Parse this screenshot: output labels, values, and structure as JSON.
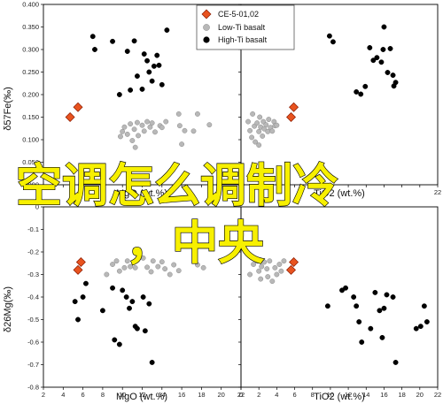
{
  "legend": {
    "items": [
      {
        "label": "CE-5-01,02",
        "marker": "diamond",
        "fill": "#e8531f"
      },
      {
        "label": "Low-Ti basalt",
        "marker": "circle",
        "fill": "#b8b8b8"
      },
      {
        "label": "High-Ti basalt",
        "marker": "circle",
        "fill": "#000000"
      }
    ]
  },
  "overlay_text": {
    "line1": "空调怎么调制冷",
    "line2": "，中央"
  },
  "chart_data": [
    {
      "type": "scatter",
      "panel": "top-left",
      "xlabel": "MgO (wt.%)",
      "ylabel": "δ57Fe(‰)",
      "xlim": [
        2,
        22
      ],
      "ylim": [
        0.0,
        0.4
      ],
      "xticks": [
        2,
        4,
        6,
        8,
        10,
        12,
        14,
        16,
        18,
        20,
        22
      ],
      "xtick_labels": [
        "",
        "",
        "",
        "",
        "",
        "",
        "",
        "",
        "",
        "",
        ""
      ],
      "yticks": [
        0.0,
        0.05,
        0.1,
        0.15,
        0.2,
        0.25,
        0.3,
        0.35,
        0.4
      ],
      "ytick_labels": [
        "0.000",
        "0.050",
        "0.100",
        "0.150",
        "0.200",
        "0.250",
        "0.300",
        "0.350",
        "0.400"
      ],
      "series": [
        {
          "name": "CE-5-01,02",
          "marker": "diamond",
          "points": [
            [
              4.7,
              0.15
            ],
            [
              5.5,
              0.172
            ]
          ]
        },
        {
          "name": "Low-Ti basalt",
          "marker": "circle",
          "points": [
            [
              9.8,
              0.107
            ],
            [
              10.0,
              0.118
            ],
            [
              10.2,
              0.128
            ],
            [
              10.5,
              0.112
            ],
            [
              10.8,
              0.135
            ],
            [
              11.0,
              0.098
            ],
            [
              11.2,
              0.123
            ],
            [
              11.5,
              0.138
            ],
            [
              11.6,
              0.109
            ],
            [
              12.0,
              0.132
            ],
            [
              12.2,
              0.119
            ],
            [
              12.5,
              0.14
            ],
            [
              12.8,
              0.128
            ],
            [
              13.0,
              0.137
            ],
            [
              13.3,
              0.117
            ],
            [
              13.8,
              0.131
            ],
            [
              14.0,
              0.127
            ],
            [
              14.4,
              0.14
            ],
            [
              15.7,
              0.157
            ],
            [
              15.8,
              0.131
            ],
            [
              16.0,
              0.09
            ],
            [
              16.3,
              0.12
            ],
            [
              17.2,
              0.119
            ],
            [
              17.6,
              0.157
            ],
            [
              18.8,
              0.133
            ],
            [
              11.3,
              0.083
            ]
          ]
        },
        {
          "name": "High-Ti basalt",
          "marker": "circle",
          "points": [
            [
              7.0,
              0.329
            ],
            [
              7.2,
              0.3
            ],
            [
              9.0,
              0.318
            ],
            [
              9.7,
              0.2
            ],
            [
              10.5,
              0.296
            ],
            [
              10.8,
              0.21
            ],
            [
              11.2,
              0.319
            ],
            [
              11.5,
              0.241
            ],
            [
              12.0,
              0.212
            ],
            [
              12.2,
              0.29
            ],
            [
              12.5,
              0.275
            ],
            [
              12.7,
              0.25
            ],
            [
              13.0,
              0.23
            ],
            [
              13.2,
              0.263
            ],
            [
              13.5,
              0.287
            ],
            [
              13.7,
              0.265
            ],
            [
              14.0,
              0.222
            ],
            [
              14.5,
              0.343
            ]
          ]
        }
      ]
    },
    {
      "type": "scatter",
      "panel": "top-right",
      "xlabel": "TiO2 (wt.%)",
      "ylabel": "",
      "xlim": [
        0,
        22
      ],
      "ylim": [
        0.0,
        0.4
      ],
      "xticks": [
        0,
        2,
        4,
        6,
        8,
        10,
        12,
        14,
        16,
        18,
        20,
        22
      ],
      "xtick_labels": [
        "",
        "",
        "",
        "",
        "",
        "",
        "",
        "",
        "",
        "",
        "",
        "22"
      ],
      "yticks": [
        0.0,
        0.05,
        0.1,
        0.15,
        0.2,
        0.25,
        0.3,
        0.35,
        0.4
      ],
      "ytick_labels": [
        "",
        "",
        "",
        "",
        "",
        "",
        "",
        "",
        ""
      ],
      "series": [
        {
          "name": "CE-5-01,02",
          "marker": "diamond",
          "points": [
            [
              5.6,
              0.15
            ],
            [
              5.9,
              0.172
            ]
          ]
        },
        {
          "name": "Low-Ti basalt",
          "marker": "circle",
          "points": [
            [
              0.8,
              0.14
            ],
            [
              1.0,
              0.12
            ],
            [
              1.2,
              0.105
            ],
            [
              1.3,
              0.157
            ],
            [
              1.5,
              0.13
            ],
            [
              1.6,
              0.095
            ],
            [
              1.8,
              0.137
            ],
            [
              2.0,
              0.118
            ],
            [
              2.1,
              0.15
            ],
            [
              2.2,
              0.128
            ],
            [
              2.4,
              0.108
            ],
            [
              2.5,
              0.14
            ],
            [
              2.6,
              0.124
            ],
            [
              2.8,
              0.133
            ],
            [
              3.0,
              0.118
            ],
            [
              3.1,
              0.145
            ],
            [
              3.3,
              0.127
            ],
            [
              3.5,
              0.119
            ],
            [
              3.7,
              0.14
            ],
            [
              3.8,
              0.131
            ],
            [
              2.0,
              0.088
            ],
            [
              4.0,
              0.132
            ]
          ]
        },
        {
          "name": "High-Ti basalt",
          "marker": "circle",
          "points": [
            [
              9.9,
              0.33
            ],
            [
              10.3,
              0.317
            ],
            [
              12.9,
              0.206
            ],
            [
              13.4,
              0.201
            ],
            [
              13.9,
              0.218
            ],
            [
              14.4,
              0.304
            ],
            [
              14.8,
              0.276
            ],
            [
              15.2,
              0.282
            ],
            [
              15.7,
              0.272
            ],
            [
              15.9,
              0.3
            ],
            [
              16.0,
              0.35
            ],
            [
              16.4,
              0.249
            ],
            [
              16.7,
              0.302
            ],
            [
              17.0,
              0.243
            ],
            [
              17.1,
              0.219
            ],
            [
              17.3,
              0.227
            ]
          ]
        }
      ]
    },
    {
      "type": "scatter",
      "panel": "bottom-left",
      "xlabel": "MgO (wt.%)",
      "ylabel": "δ26Mg(‰)",
      "xlim": [
        2,
        22
      ],
      "ylim": [
        -0.8,
        0.0
      ],
      "xticks": [
        2,
        4,
        6,
        8,
        10,
        12,
        14,
        16,
        18,
        20,
        22
      ],
      "xtick_labels": [
        "2",
        "4",
        "6",
        "8",
        "10",
        "12",
        "14",
        "16",
        "18",
        "20",
        "22"
      ],
      "yticks": [
        -0.8,
        -0.7,
        -0.6,
        -0.5,
        -0.4,
        -0.3,
        -0.2,
        -0.1,
        0.0
      ],
      "ytick_labels": [
        "-0.8",
        "-0.7",
        "-0.6",
        "-0.5",
        "-0.4",
        "-0.3",
        "-0.2",
        "-0.1",
        "0"
      ],
      "series": [
        {
          "name": "CE-5-01,02",
          "marker": "diamond",
          "points": [
            [
              5.5,
              -0.28
            ],
            [
              5.8,
              -0.245
            ]
          ]
        },
        {
          "name": "Low-Ti basalt",
          "marker": "circle",
          "points": [
            [
              8.4,
              -0.3
            ],
            [
              9.0,
              -0.255
            ],
            [
              9.4,
              -0.24
            ],
            [
              9.7,
              -0.285
            ],
            [
              10.2,
              -0.27
            ],
            [
              10.5,
              -0.24
            ],
            [
              10.8,
              -0.265
            ],
            [
              11.3,
              -0.27
            ],
            [
              11.5,
              -0.233
            ],
            [
              12.1,
              -0.227
            ],
            [
              12.5,
              -0.268
            ],
            [
              12.9,
              -0.288
            ],
            [
              13.1,
              -0.24
            ],
            [
              13.6,
              -0.265
            ],
            [
              14.0,
              -0.244
            ],
            [
              14.3,
              -0.275
            ],
            [
              14.8,
              -0.3
            ],
            [
              15.2,
              -0.257
            ],
            [
              15.7,
              -0.283
            ],
            [
              17.6,
              -0.257
            ],
            [
              18.2,
              -0.27
            ]
          ]
        },
        {
          "name": "High-Ti basalt",
          "marker": "circle",
          "points": [
            [
              5.2,
              -0.42
            ],
            [
              5.5,
              -0.5
            ],
            [
              6.0,
              -0.4
            ],
            [
              6.3,
              -0.34
            ],
            [
              8.0,
              -0.46
            ],
            [
              9.0,
              -0.36
            ],
            [
              9.2,
              -0.59
            ],
            [
              9.7,
              -0.61
            ],
            [
              10.0,
              -0.37
            ],
            [
              10.4,
              -0.4
            ],
            [
              10.7,
              -0.45
            ],
            [
              11.0,
              -0.42
            ],
            [
              11.3,
              -0.53
            ],
            [
              11.5,
              -0.54
            ],
            [
              12.1,
              -0.4
            ],
            [
              12.3,
              -0.55
            ],
            [
              12.7,
              -0.43
            ],
            [
              13.0,
              -0.69
            ]
          ]
        }
      ]
    },
    {
      "type": "scatter",
      "panel": "bottom-right",
      "xlabel": "TiO2 (wt.%)",
      "ylabel": "",
      "xlim": [
        0,
        22
      ],
      "ylim": [
        -0.8,
        0.0
      ],
      "xticks": [
        0,
        2,
        4,
        6,
        8,
        10,
        12,
        14,
        16,
        18,
        20,
        22
      ],
      "xtick_labels": [
        "0",
        "2",
        "4",
        "6",
        "8",
        "10",
        "12",
        "14",
        "16",
        "18",
        "20",
        "22"
      ],
      "yticks": [
        -0.8,
        -0.7,
        -0.6,
        -0.5,
        -0.4,
        -0.3,
        -0.2,
        -0.1,
        0.0
      ],
      "ytick_labels": [
        "",
        "",
        "",
        "",
        "",
        "",
        "",
        "",
        ""
      ],
      "series": [
        {
          "name": "CE-5-01,02",
          "marker": "diamond",
          "points": [
            [
              5.6,
              -0.28
            ],
            [
              5.9,
              -0.245
            ]
          ]
        },
        {
          "name": "Low-Ti basalt",
          "marker": "circle",
          "points": [
            [
              1.0,
              -0.3
            ],
            [
              1.4,
              -0.255
            ],
            [
              1.8,
              -0.24
            ],
            [
              2.0,
              -0.285
            ],
            [
              2.3,
              -0.265
            ],
            [
              2.6,
              -0.245
            ],
            [
              2.9,
              -0.275
            ],
            [
              3.2,
              -0.24
            ],
            [
              3.5,
              -0.33
            ],
            [
              3.8,
              -0.27
            ],
            [
              4.0,
              -0.3
            ],
            [
              4.3,
              -0.255
            ],
            [
              4.5,
              -0.285
            ],
            [
              4.8,
              -0.24
            ],
            [
              3.0,
              -0.31
            ],
            [
              2.2,
              -0.32
            ]
          ]
        },
        {
          "name": "High-Ti basalt",
          "marker": "circle",
          "points": [
            [
              9.7,
              -0.44
            ],
            [
              11.3,
              -0.37
            ],
            [
              11.7,
              -0.36
            ],
            [
              12.6,
              -0.4
            ],
            [
              12.9,
              -0.44
            ],
            [
              13.2,
              -0.51
            ],
            [
              13.5,
              -0.6
            ],
            [
              14.5,
              -0.54
            ],
            [
              15.0,
              -0.38
            ],
            [
              15.5,
              -0.46
            ],
            [
              15.8,
              -0.58
            ],
            [
              16.0,
              -0.45
            ],
            [
              16.3,
              -0.39
            ],
            [
              17.0,
              -0.4
            ],
            [
              17.3,
              -0.69
            ],
            [
              19.6,
              -0.54
            ],
            [
              20.1,
              -0.53
            ],
            [
              20.5,
              -0.44
            ],
            [
              20.8,
              -0.51
            ]
          ]
        }
      ]
    }
  ]
}
